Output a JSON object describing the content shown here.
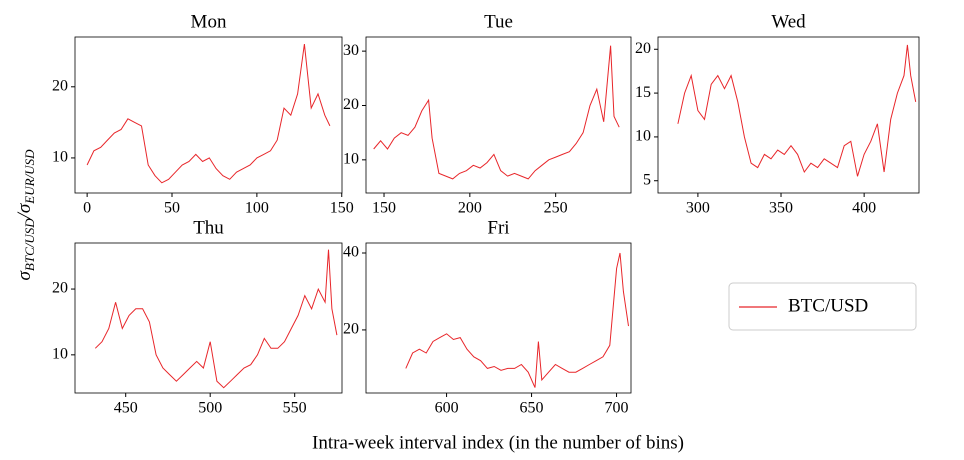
{
  "chart_data": [
    {
      "type": "line",
      "title": "Mon",
      "x": [
        0,
        4,
        8,
        12,
        16,
        20,
        24,
        28,
        32,
        36,
        40,
        44,
        48,
        52,
        56,
        60,
        64,
        68,
        72,
        76,
        80,
        84,
        88,
        92,
        96,
        100,
        104,
        108,
        112,
        116,
        120,
        124,
        128,
        132,
        136,
        140,
        143
      ],
      "series": [
        {
          "name": "BTC/USD",
          "color": "#e8262a",
          "values": [
            9,
            11,
            11.5,
            12.5,
            13.5,
            14,
            15.5,
            15,
            14.5,
            9,
            7.5,
            6.5,
            7,
            8,
            9,
            9.5,
            10.5,
            9.5,
            10,
            8.5,
            7.5,
            7,
            8,
            8.5,
            9,
            10,
            10.5,
            11,
            12.5,
            17,
            16,
            19,
            26,
            17,
            19,
            16,
            14.5
          ]
        }
      ],
      "xlim": [
        -7.15,
        150.15
      ],
      "ylim": [
        5.07,
        27.0
      ],
      "xticks": [
        0,
        50,
        100,
        150
      ],
      "yticks": [
        10,
        20
      ]
    },
    {
      "type": "line",
      "title": "Tue",
      "x": [
        144,
        148,
        152,
        156,
        160,
        164,
        168,
        172,
        176,
        178,
        182,
        186,
        190,
        194,
        198,
        202,
        206,
        210,
        214,
        218,
        222,
        226,
        230,
        234,
        238,
        242,
        246,
        250,
        254,
        258,
        262,
        266,
        270,
        274,
        278,
        282,
        284,
        287
      ],
      "series": [
        {
          "name": "BTC/USD",
          "color": "#e8262a",
          "values": [
            12,
            13.5,
            12,
            14,
            15,
            14.5,
            16,
            19,
            21,
            14,
            7.5,
            7,
            6.5,
            7.5,
            8,
            9,
            8.5,
            9.5,
            11,
            8,
            7,
            7.5,
            7,
            6.5,
            8,
            9,
            10,
            10.5,
            11,
            11.5,
            13,
            15,
            20,
            23,
            17,
            31,
            18,
            16
          ]
        }
      ],
      "xlim": [
        139.5,
        293.9
      ],
      "ylim": [
        3.9,
        32.6
      ],
      "xticks": [
        150,
        200,
        250
      ],
      "yticks": [
        10,
        20,
        30
      ]
    },
    {
      "type": "line",
      "title": "Wed",
      "x": [
        288,
        292,
        296,
        300,
        304,
        308,
        312,
        316,
        320,
        324,
        328,
        332,
        336,
        340,
        344,
        348,
        352,
        356,
        360,
        364,
        368,
        372,
        376,
        380,
        384,
        388,
        392,
        396,
        400,
        404,
        408,
        412,
        416,
        420,
        424,
        426,
        428,
        431
      ],
      "series": [
        {
          "name": "BTC/USD",
          "color": "#e8262a",
          "values": [
            11.5,
            15,
            17,
            13,
            12,
            16,
            17,
            15.5,
            17,
            14,
            10,
            7,
            6.5,
            8,
            7.5,
            8.5,
            8,
            9,
            8,
            6,
            7,
            6.5,
            7.5,
            7,
            6.5,
            9,
            9.5,
            5.5,
            8,
            9.5,
            11.5,
            6,
            12,
            15,
            17,
            20.5,
            17,
            14
          ]
        }
      ],
      "xlim": [
        276,
        433
      ],
      "ylim": [
        3.6,
        21.4
      ],
      "xticks": [
        300,
        350,
        400
      ],
      "yticks": [
        5,
        10,
        15,
        20
      ]
    },
    {
      "type": "line",
      "title": "Thu",
      "x": [
        432,
        436,
        440,
        444,
        448,
        452,
        456,
        460,
        464,
        468,
        472,
        476,
        480,
        484,
        488,
        492,
        496,
        500,
        504,
        508,
        512,
        516,
        520,
        524,
        528,
        532,
        536,
        540,
        544,
        548,
        552,
        556,
        560,
        564,
        568,
        570,
        572,
        575
      ],
      "series": [
        {
          "name": "BTC/USD",
          "color": "#e8262a",
          "values": [
            11,
            12,
            14,
            18,
            14,
            16,
            17,
            17,
            15,
            10,
            8,
            7,
            6,
            7,
            8,
            9,
            8,
            12,
            6,
            5,
            6,
            7,
            8,
            8.5,
            10,
            12.5,
            11,
            11,
            12,
            14,
            16,
            19,
            17,
            20,
            18,
            26,
            17,
            13
          ]
        }
      ],
      "xlim": [
        420,
        578
      ],
      "ylim": [
        4.2,
        27.0
      ],
      "xticks": [
        450,
        500,
        550
      ],
      "yticks": [
        10,
        20
      ]
    },
    {
      "type": "line",
      "title": "Fri",
      "x": [
        576,
        580,
        584,
        588,
        592,
        596,
        600,
        604,
        608,
        612,
        616,
        620,
        624,
        628,
        632,
        636,
        640,
        644,
        648,
        652,
        654,
        656,
        660,
        664,
        668,
        672,
        676,
        680,
        684,
        688,
        692,
        696,
        700,
        702,
        704,
        707
      ],
      "series": [
        {
          "name": "BTC/USD",
          "color": "#e8262a",
          "values": [
            10,
            14,
            15,
            14,
            17,
            18,
            19,
            17.5,
            18,
            15,
            13,
            12,
            10,
            10.5,
            9.5,
            10,
            10,
            11,
            9,
            5,
            17,
            7,
            9,
            11,
            10,
            9,
            9,
            10,
            11,
            12,
            13,
            16,
            36,
            40,
            30,
            21
          ]
        }
      ],
      "xlim": [
        552.6,
        708.5
      ],
      "ylim": [
        3.6,
        42.6
      ],
      "xticks": [
        600,
        650,
        700
      ],
      "yticks": [
        20,
        40
      ]
    }
  ],
  "y_label": [
    "σ",
    "BTC/USD",
    "/σ",
    "EUR/USD"
  ],
  "x_label": "Intra-week interval index (in the number of bins)"
}
